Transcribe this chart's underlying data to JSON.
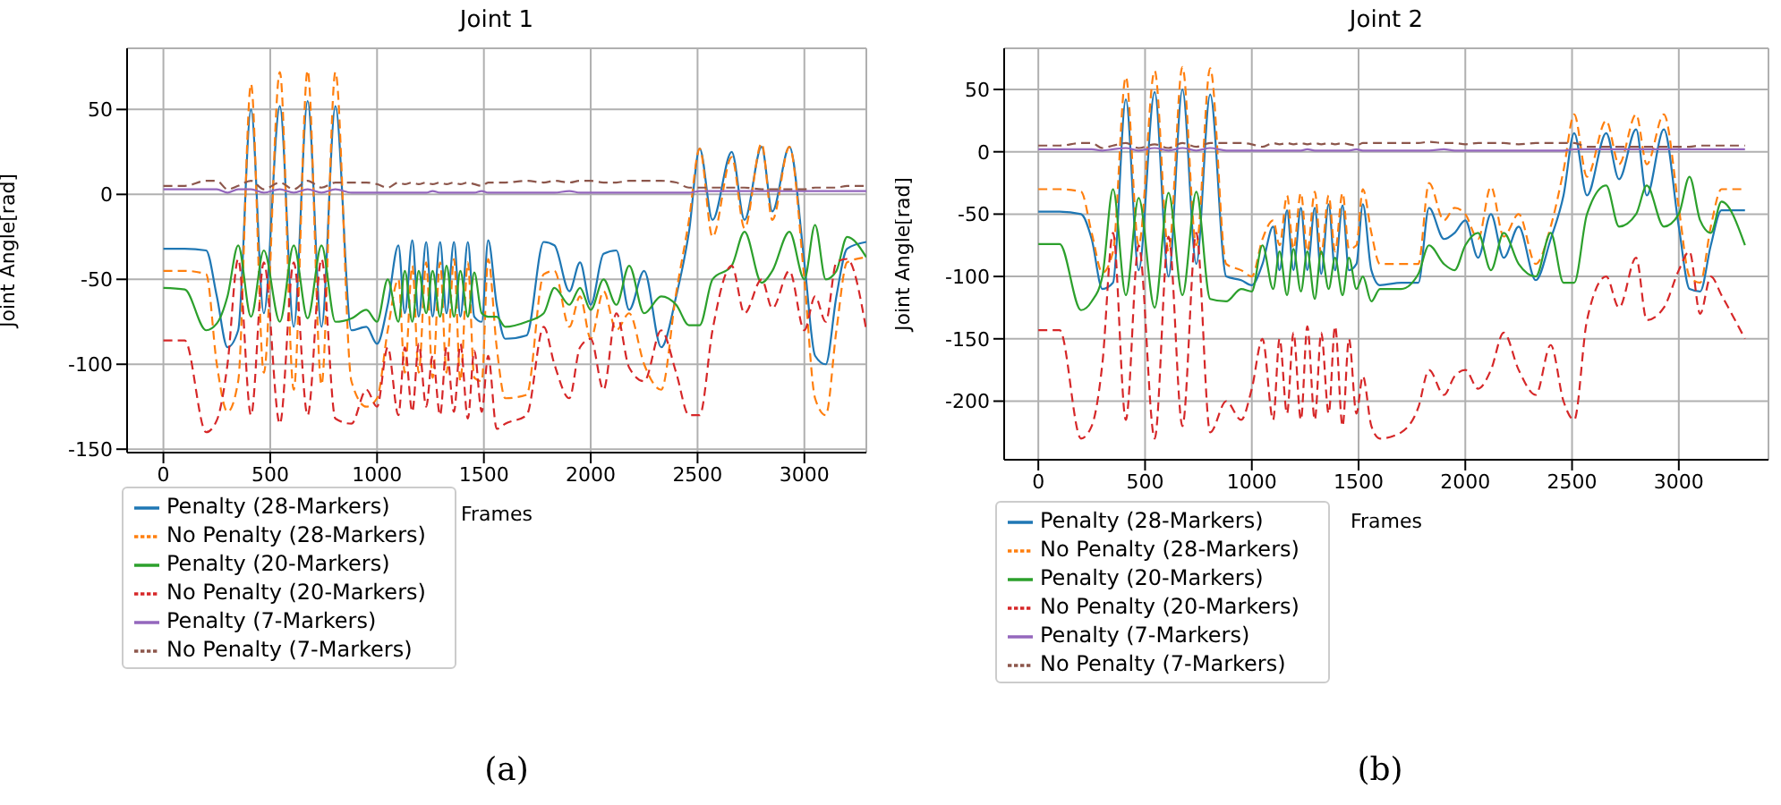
{
  "chart_data": [
    {
      "type": "line",
      "title": "Joint 1",
      "xlabel": "Frames",
      "ylabel": "Joint Angle[rad]",
      "grid": true,
      "legend": "bottom left",
      "annotations": [
        "(a)"
      ],
      "x": [
        0,
        100,
        200,
        250,
        300,
        350,
        410,
        470,
        545,
        610,
        675,
        740,
        805,
        880,
        950,
        1000,
        1050,
        1100,
        1130,
        1165,
        1195,
        1230,
        1260,
        1295,
        1325,
        1360,
        1390,
        1425,
        1455,
        1490,
        1520,
        1560,
        1600,
        1700,
        1780,
        1830,
        1900,
        1950,
        2000,
        2060,
        2120,
        2180,
        2250,
        2330,
        2400,
        2460,
        2510,
        2570,
        2660,
        2720,
        2800,
        2850,
        2930,
        3000,
        3050,
        3100,
        3150,
        3200,
        3290
      ],
      "xlim": [
        -170,
        3290
      ],
      "xticks": [
        0,
        500,
        1000,
        1500,
        2000,
        2500,
        3000
      ],
      "ylim": [
        -152,
        86
      ],
      "yticks": [
        -150,
        -100,
        -50,
        0,
        50
      ],
      "series": [
        {
          "name": "Penalty (28-Markers)",
          "color": "#1f77b4",
          "line_style": "solid",
          "values": [
            -32,
            -32,
            -33,
            -60,
            -90,
            -80,
            50,
            -70,
            52,
            -78,
            55,
            -78,
            52,
            -80,
            -78,
            -88,
            -65,
            -30,
            -70,
            -27,
            -72,
            -28,
            -72,
            -28,
            -70,
            -28,
            -72,
            -28,
            -72,
            -75,
            -27,
            -65,
            -85,
            -83,
            -28,
            -30,
            -57,
            -40,
            -65,
            -35,
            -33,
            -68,
            -45,
            -90,
            -60,
            -22,
            27,
            -15,
            25,
            -15,
            28,
            -10,
            28,
            -40,
            -95,
            -100,
            -60,
            -32,
            -28
          ]
        },
        {
          "name": "No Penalty (28-Markers)",
          "color": "#ff7f0e",
          "line_style": "dashed",
          "values": [
            -45,
            -45,
            -47,
            -100,
            -128,
            -110,
            65,
            -105,
            72,
            -115,
            73,
            -112,
            72,
            -110,
            -125,
            -120,
            -80,
            -50,
            -105,
            -42,
            -105,
            -40,
            -108,
            -40,
            -105,
            -38,
            -110,
            -40,
            -108,
            -110,
            -38,
            -90,
            -120,
            -118,
            -47,
            -45,
            -78,
            -60,
            -85,
            -57,
            -80,
            -70,
            -100,
            -115,
            -58,
            -15,
            27,
            -25,
            22,
            -20,
            30,
            -15,
            28,
            -50,
            -120,
            -130,
            -80,
            -40,
            -37
          ]
        },
        {
          "name": "Penalty (20-Markers)",
          "color": "#2ca02c",
          "line_style": "solid",
          "values": [
            -55,
            -56,
            -80,
            -76,
            -60,
            -30,
            -72,
            -33,
            -75,
            -30,
            -73,
            -30,
            -75,
            -73,
            -68,
            -75,
            -50,
            -75,
            -45,
            -75,
            -45,
            -70,
            -45,
            -72,
            -42,
            -72,
            -45,
            -72,
            -46,
            -70,
            -72,
            -72,
            -78,
            -75,
            -70,
            -55,
            -65,
            -55,
            -68,
            -50,
            -65,
            -42,
            -70,
            -60,
            -65,
            -77,
            -77,
            -50,
            -42,
            -22,
            -52,
            -45,
            -22,
            -50,
            -18,
            -50,
            -45,
            -25,
            -37
          ]
        },
        {
          "name": "No Penalty (20-Markers)",
          "color": "#d62728",
          "line_style": "dashed",
          "values": [
            -86,
            -86,
            -140,
            -133,
            -100,
            -38,
            -130,
            -40,
            -135,
            -40,
            -130,
            -38,
            -132,
            -135,
            -115,
            -125,
            -90,
            -130,
            -90,
            -128,
            -88,
            -125,
            -95,
            -130,
            -90,
            -128,
            -88,
            -132,
            -92,
            -128,
            -95,
            -138,
            -135,
            -130,
            -78,
            -100,
            -120,
            -90,
            -85,
            -115,
            -70,
            -102,
            -110,
            -80,
            -105,
            -130,
            -130,
            -80,
            -42,
            -70,
            -50,
            -67,
            -45,
            -80,
            -60,
            -75,
            -40,
            -38,
            -80
          ]
        },
        {
          "name": "Penalty (7-Markers)",
          "color": "#9467bd",
          "line_style": "solid",
          "values": [
            3,
            3,
            3,
            3,
            1,
            3,
            3,
            1,
            3,
            1,
            3,
            1,
            3,
            1,
            1,
            1,
            1,
            1,
            1,
            1,
            1,
            1,
            2,
            1,
            1,
            1,
            1,
            1,
            1,
            2,
            1,
            1,
            1,
            1,
            1,
            1,
            2,
            1,
            1,
            1,
            1,
            1,
            1,
            1,
            1,
            1,
            2,
            2,
            2,
            2,
            2,
            2,
            2,
            2,
            2,
            2,
            2,
            2,
            2
          ]
        },
        {
          "name": "No Penalty (7-Markers)",
          "color": "#8c564b",
          "line_style": "dashed",
          "values": [
            5,
            5,
            8,
            8,
            3,
            5,
            8,
            3,
            7,
            3,
            8,
            4,
            7,
            7,
            7,
            6,
            4,
            7,
            6,
            7,
            6,
            7,
            6,
            7,
            6,
            7,
            6,
            7,
            6,
            5,
            7,
            7,
            7,
            8,
            7,
            8,
            7,
            8,
            8,
            7,
            7,
            8,
            8,
            8,
            7,
            4,
            4,
            4,
            4,
            4,
            3,
            3,
            3,
            3,
            4,
            4,
            4,
            5,
            5
          ]
        }
      ]
    },
    {
      "type": "line",
      "title": "Joint 2",
      "xlabel": "Frames",
      "ylabel": "Joint Angle[rad]",
      "grid": true,
      "legend": "bottom left",
      "annotations": [
        "(b)"
      ],
      "x": [
        0,
        100,
        200,
        250,
        300,
        350,
        410,
        470,
        545,
        610,
        675,
        740,
        805,
        880,
        950,
        1000,
        1050,
        1100,
        1130,
        1165,
        1195,
        1230,
        1260,
        1295,
        1325,
        1360,
        1390,
        1425,
        1455,
        1490,
        1520,
        1560,
        1600,
        1700,
        1780,
        1830,
        1900,
        1950,
        2000,
        2060,
        2120,
        2180,
        2250,
        2330,
        2400,
        2460,
        2510,
        2570,
        2660,
        2720,
        2800,
        2850,
        2930,
        3000,
        3050,
        3100,
        3150,
        3200,
        3310
      ],
      "xlim": [
        -160,
        3420
      ],
      "xticks": [
        0,
        500,
        1000,
        1500,
        2000,
        2500,
        3000
      ],
      "ylim": [
        -247,
        83
      ],
      "yticks": [
        -200,
        -150,
        -100,
        -50,
        0,
        50
      ],
      "series": [
        {
          "name": "Penalty (28-Markers)",
          "color": "#1f77b4",
          "line_style": "solid",
          "values": [
            -48,
            -48,
            -50,
            -70,
            -110,
            -105,
            42,
            -95,
            48,
            -100,
            50,
            -90,
            46,
            -100,
            -103,
            -107,
            -90,
            -60,
            -95,
            -47,
            -95,
            -45,
            -95,
            -45,
            -98,
            -42,
            -95,
            -43,
            -95,
            -90,
            -42,
            -95,
            -107,
            -105,
            -105,
            -45,
            -70,
            -65,
            -55,
            -85,
            -50,
            -85,
            -60,
            -103,
            -70,
            -35,
            15,
            -35,
            15,
            -22,
            18,
            -35,
            18,
            -60,
            -110,
            -112,
            -75,
            -47,
            -47
          ]
        },
        {
          "name": "No Penalty (28-Markers)",
          "color": "#ff7f0e",
          "line_style": "dashed",
          "values": [
            -30,
            -30,
            -32,
            -65,
            -97,
            -80,
            60,
            -75,
            65,
            -80,
            68,
            -75,
            67,
            -90,
            -95,
            -100,
            -70,
            -55,
            -75,
            -35,
            -78,
            -33,
            -80,
            -32,
            -82,
            -35,
            -80,
            -33,
            -78,
            -75,
            -30,
            -65,
            -90,
            -90,
            -90,
            -25,
            -55,
            -45,
            -50,
            -70,
            -28,
            -68,
            -50,
            -90,
            -60,
            -15,
            30,
            -20,
            25,
            -10,
            30,
            -10,
            30,
            -45,
            -100,
            -105,
            -60,
            -30,
            -30
          ]
        },
        {
          "name": "Penalty (20-Markers)",
          "color": "#2ca02c",
          "line_style": "solid",
          "values": [
            -74,
            -74,
            -127,
            -120,
            -100,
            -30,
            -115,
            -37,
            -125,
            -33,
            -115,
            -32,
            -118,
            -120,
            -110,
            -112,
            -75,
            -110,
            -80,
            -115,
            -78,
            -112,
            -80,
            -118,
            -80,
            -110,
            -85,
            -115,
            -85,
            -110,
            -100,
            -120,
            -110,
            -110,
            -98,
            -75,
            -90,
            -95,
            -75,
            -65,
            -95,
            -65,
            -90,
            -100,
            -65,
            -105,
            -105,
            -50,
            -27,
            -60,
            -50,
            -27,
            -60,
            -50,
            -20,
            -55,
            -65,
            -40,
            -75
          ]
        },
        {
          "name": "No Penalty (20-Markers)",
          "color": "#d62728",
          "line_style": "dashed",
          "values": [
            -143,
            -143,
            -230,
            -220,
            -170,
            -65,
            -215,
            -75,
            -230,
            -68,
            -220,
            -65,
            -225,
            -200,
            -215,
            -190,
            -150,
            -215,
            -150,
            -210,
            -145,
            -215,
            -140,
            -215,
            -145,
            -210,
            -140,
            -220,
            -150,
            -210,
            -180,
            -220,
            -230,
            -225,
            -205,
            -175,
            -195,
            -180,
            -175,
            -190,
            -175,
            -145,
            -175,
            -195,
            -155,
            -200,
            -215,
            -135,
            -100,
            -125,
            -85,
            -135,
            -125,
            -95,
            -80,
            -130,
            -100,
            -115,
            -150
          ]
        },
        {
          "name": "Penalty (7-Markers)",
          "color": "#9467bd",
          "line_style": "solid",
          "values": [
            2,
            2,
            2,
            2,
            1,
            2,
            3,
            1,
            3,
            1,
            3,
            1,
            3,
            1,
            1,
            1,
            1,
            1,
            1,
            1,
            1,
            1,
            2,
            1,
            1,
            1,
            1,
            1,
            1,
            2,
            1,
            1,
            1,
            1,
            1,
            1,
            2,
            1,
            1,
            1,
            1,
            1,
            1,
            1,
            1,
            1,
            2,
            2,
            2,
            2,
            2,
            2,
            2,
            2,
            2,
            2,
            2,
            2,
            2
          ]
        },
        {
          "name": "No Penalty (7-Markers)",
          "color": "#8c564b",
          "line_style": "dashed",
          "values": [
            5,
            5,
            7,
            7,
            3,
            5,
            7,
            3,
            6,
            3,
            7,
            4,
            7,
            7,
            7,
            6,
            4,
            7,
            6,
            7,
            6,
            7,
            6,
            7,
            6,
            7,
            6,
            7,
            6,
            5,
            7,
            7,
            7,
            7,
            7,
            8,
            7,
            7,
            6,
            7,
            7,
            7,
            6,
            7,
            7,
            7,
            7,
            4,
            4,
            4,
            4,
            4,
            4,
            4,
            4,
            5,
            5,
            5,
            5
          ]
        }
      ]
    }
  ]
}
